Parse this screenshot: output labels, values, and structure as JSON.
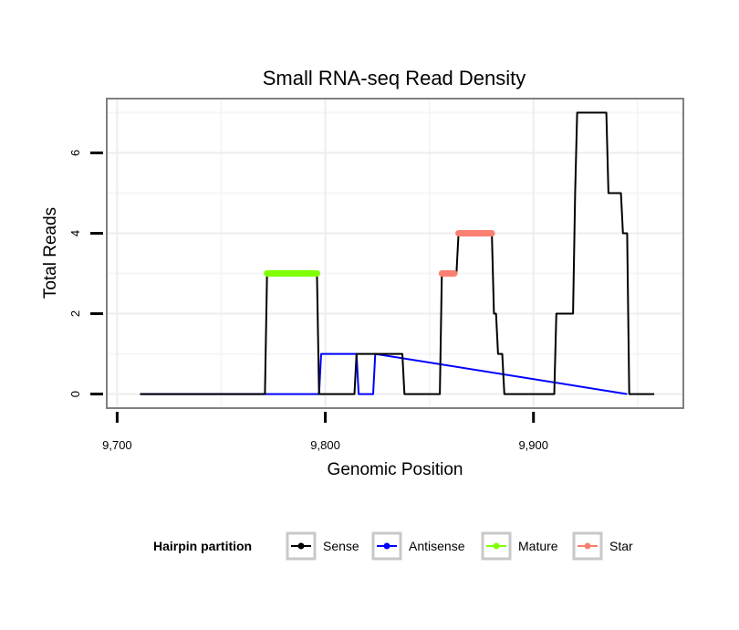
{
  "chart_data": {
    "type": "line",
    "title": "Small RNA-seq Read Density",
    "xlabel": "Genomic Position",
    "ylabel": "Total Reads",
    "xlim": [
      9695,
      9972
    ],
    "ylim": [
      -0.35,
      7.35
    ],
    "x_ticks": [
      9700,
      9800,
      9900
    ],
    "x_tick_labels": [
      "9,700",
      "9,800",
      "9,900"
    ],
    "y_ticks": [
      0,
      2,
      4,
      6
    ],
    "y_tick_labels": [
      "0",
      "2",
      "4",
      "6"
    ],
    "grid": true,
    "grid_x_minor": [
      9750,
      9850,
      9950
    ],
    "grid_y_minor": [
      1,
      3,
      5,
      7
    ],
    "legend_position": "bottom",
    "legend_title": "Hairpin partition",
    "series": [
      {
        "name": "Sense",
        "color": "#000000",
        "x": [
          9711,
          9771,
          9772,
          9796,
          9797,
          9801,
          9814,
          9815,
          9837,
          9838,
          9855,
          9856,
          9863,
          9864,
          9880,
          9881,
          9882,
          9883,
          9885,
          9886,
          9910,
          9911,
          9918,
          9919,
          9920,
          9921,
          9935,
          9936,
          9942,
          9943,
          9945,
          9946,
          9958
        ],
        "values": [
          0,
          0,
          3,
          3,
          0,
          0,
          0,
          1,
          1,
          0,
          0,
          3,
          3,
          4,
          4,
          2,
          2,
          1,
          1,
          0,
          0,
          2,
          2,
          2,
          5,
          7,
          7,
          5,
          5,
          4,
          4,
          0,
          0
        ]
      },
      {
        "name": "Antisense",
        "color": "#0000ff",
        "x": [
          9711,
          9797,
          9798,
          9815,
          9816,
          9823,
          9824,
          9945
        ],
        "values": [
          0,
          0,
          1,
          1,
          0,
          0,
          1,
          0
        ]
      },
      {
        "name": "Mature",
        "color": "#7fff00",
        "x": [
          9772,
          9796
        ],
        "values": [
          3,
          3
        ]
      },
      {
        "name": "Star",
        "color": "#fa8072",
        "segments": [
          {
            "x": [
              9856,
              9862
            ],
            "values": [
              3,
              3
            ]
          },
          {
            "x": [
              9864,
              9880
            ],
            "values": [
              4,
              4
            ]
          }
        ]
      }
    ]
  }
}
